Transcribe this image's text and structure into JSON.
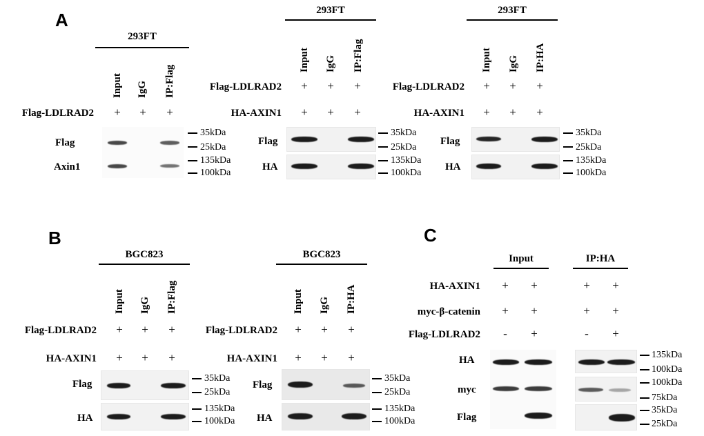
{
  "panels": {
    "A": {
      "letter": "A",
      "blots": [
        {
          "cell_line": "293FT",
          "lanes": [
            "Input",
            "IgG",
            "IP:Flag"
          ],
          "conditions": [
            {
              "label": "Flag-LDLRAD2",
              "marks": [
                "+",
                "+",
                "+"
              ]
            }
          ],
          "rows": [
            {
              "label": "Flag",
              "mw": [
                "35kDa",
                "25kDa"
              ],
              "bands": [
                0.75,
                0,
                0.7
              ]
            },
            {
              "label": "Axin1",
              "mw": [
                "135kDa",
                "100kDa"
              ],
              "bands": [
                0.75,
                0,
                0.65
              ]
            }
          ]
        },
        {
          "cell_line": "293FT",
          "lanes": [
            "Input",
            "IgG",
            "IP:Flag"
          ],
          "conditions": [
            {
              "label": "Flag-LDLRAD2",
              "marks": [
                "+",
                "+",
                "+"
              ]
            },
            {
              "label": "HA-AXIN1",
              "marks": [
                "+",
                "+",
                "+"
              ]
            }
          ],
          "rows": [
            {
              "label": "Flag",
              "mw": [
                "35kDa",
                "25kDa"
              ],
              "bands": [
                1,
                0,
                1
              ]
            },
            {
              "label": "HA",
              "mw": [
                "135kDa",
                "100kDa"
              ],
              "bands": [
                1,
                0,
                1
              ]
            }
          ]
        },
        {
          "cell_line": "293FT",
          "lanes": [
            "Input",
            "IgG",
            "IP:HA"
          ],
          "conditions": [
            {
              "label": "Flag-LDLRAD2",
              "marks": [
                "+",
                "+",
                "+"
              ]
            },
            {
              "label": "HA-AXIN1",
              "marks": [
                "+",
                "+",
                "+"
              ]
            }
          ],
          "rows": [
            {
              "label": "Flag",
              "mw": [
                "35kDa",
                "25kDa"
              ],
              "bands": [
                0.95,
                0,
                1
              ]
            },
            {
              "label": "HA",
              "mw": [
                "135kDa",
                "100kDa"
              ],
              "bands": [
                1,
                0,
                1
              ]
            }
          ]
        }
      ]
    },
    "B": {
      "letter": "B",
      "blots": [
        {
          "cell_line": "BGC823",
          "lanes": [
            "Input",
            "IgG",
            "IP:Flag"
          ],
          "conditions": [
            {
              "label": "Flag-LDLRAD2",
              "marks": [
                "+",
                "+",
                "+"
              ]
            },
            {
              "label": "HA-AXIN1",
              "marks": [
                "+",
                "+",
                "+"
              ]
            }
          ],
          "rows": [
            {
              "label": "Flag",
              "mw": [
                "35kDa",
                "25kDa"
              ],
              "bands": [
                1,
                0,
                1
              ]
            },
            {
              "label": "HA",
              "mw": [
                "135kDa",
                "100kDa"
              ],
              "bands": [
                1,
                0,
                1
              ]
            }
          ]
        },
        {
          "cell_line": "BGC823",
          "lanes": [
            "Input",
            "IgG",
            "IP:HA"
          ],
          "conditions": [
            {
              "label": "Flag-LDLRAD2",
              "marks": [
                "+",
                "+",
                "+"
              ]
            },
            {
              "label": "HA-AXIN1",
              "marks": [
                "+",
                "+",
                "+"
              ]
            }
          ],
          "rows": [
            {
              "label": "Flag",
              "mw": [
                "35kDa",
                "25kDa"
              ],
              "bands": [
                1,
                0,
                0.7
              ]
            },
            {
              "label": "HA",
              "mw": [
                "135kDa",
                "100kDa"
              ],
              "bands": [
                1,
                0,
                1
              ]
            }
          ]
        }
      ]
    },
    "C": {
      "letter": "C",
      "groups": [
        "Input",
        "IP:HA"
      ],
      "conditions": [
        {
          "label": "HA-AXIN1",
          "marks": [
            "+",
            "+",
            "+",
            "+"
          ]
        },
        {
          "label": "myc-β-catenin",
          "marks": [
            "+",
            "+",
            "+",
            "+"
          ]
        },
        {
          "label": "Flag-LDLRAD2",
          "marks": [
            "-",
            "+",
            "-",
            "+"
          ]
        }
      ],
      "rows": [
        {
          "label": "HA",
          "mw": [
            "135kDa",
            "100kDa"
          ],
          "bands": [
            1,
            1,
            1,
            1
          ]
        },
        {
          "label": "myc",
          "mw": [
            "100kDa",
            "75kDa"
          ],
          "bands": [
            0.85,
            0.85,
            0.7,
            0.35
          ]
        },
        {
          "label": "Flag",
          "mw": [
            "35kDa",
            "25kDa"
          ],
          "bands": [
            0,
            1,
            0,
            1
          ]
        }
      ]
    }
  }
}
